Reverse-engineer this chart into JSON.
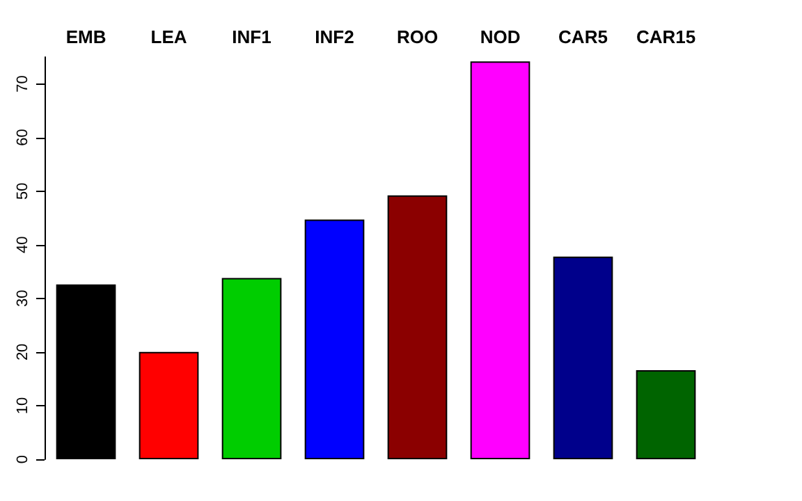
{
  "chart_data": {
    "type": "bar",
    "categories": [
      "EMB",
      "LEA",
      "INF1",
      "INF2",
      "ROO",
      "NOD",
      "CAR5",
      "CAR15"
    ],
    "values": [
      32.6,
      20.0,
      33.8,
      44.7,
      49.2,
      74.2,
      37.8,
      16.6
    ],
    "colors": [
      "#000000",
      "#ff0000",
      "#00cd00",
      "#0000ff",
      "#8b0000",
      "#ff00ff",
      "#00008b",
      "#006400"
    ],
    "ylim": [
      0,
      75
    ],
    "yticks": [
      0,
      10,
      20,
      30,
      40,
      50,
      60,
      70
    ],
    "grid": false
  }
}
